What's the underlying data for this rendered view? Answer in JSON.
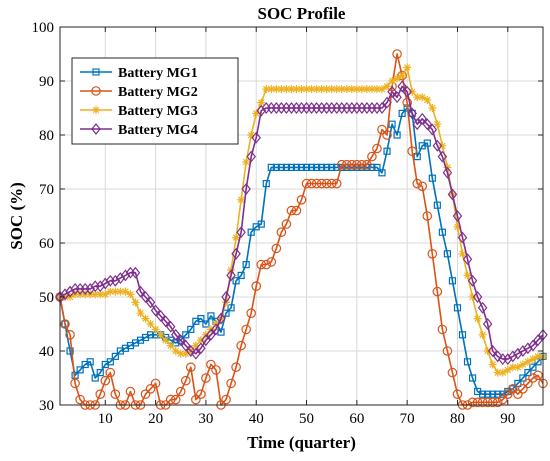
{
  "chart_data": {
    "type": "line",
    "title": "SOC Profile",
    "xlabel": "Time (quarter)",
    "ylabel": "SOC (%)",
    "xlim": [
      1,
      97
    ],
    "ylim": [
      30,
      100
    ],
    "xticks": [
      10,
      20,
      30,
      40,
      50,
      60,
      70,
      80,
      90
    ],
    "yticks": [
      30,
      40,
      50,
      60,
      70,
      80,
      90,
      100
    ],
    "grid": true,
    "legend_position": "top-left",
    "x_start": 1,
    "x_step": 1,
    "series": [
      {
        "name": "Battery MG1",
        "color": "#0072BD",
        "marker": "square",
        "values": [
          50.0,
          45.0,
          40.0,
          35.5,
          36.5,
          37.5,
          38.0,
          35.0,
          36.0,
          37.5,
          38.0,
          39.0,
          40.0,
          40.5,
          41.0,
          41.5,
          42.0,
          42.5,
          43.0,
          43.0,
          43.0,
          42.5,
          42.0,
          41.5,
          42.0,
          43.0,
          44.0,
          45.5,
          46.0,
          45.0,
          46.5,
          45.5,
          43.5,
          47.0,
          48.0,
          53.0,
          54.0,
          56.0,
          62.0,
          63.0,
          63.5,
          71.0,
          74.0,
          74.0,
          74.0,
          74.0,
          74.0,
          74.0,
          74.0,
          74.0,
          74.0,
          74.0,
          74.0,
          74.0,
          74.0,
          74.0,
          74.0,
          74.0,
          74.0,
          74.0,
          74.0,
          74.0,
          74.0,
          74.0,
          73.0,
          77.0,
          82.0,
          80.0,
          84.0,
          85.0,
          84.0,
          76.0,
          78.0,
          78.5,
          72.0,
          67.0,
          62.0,
          58.0,
          53.0,
          48.0,
          43.0,
          38.0,
          35.0,
          32.5,
          32.0,
          32.0,
          32.0,
          32.0,
          32.0,
          32.5,
          33.0,
          34.0,
          35.0,
          36.0,
          37.0,
          38.0,
          39.0
        ]
      },
      {
        "name": "Battery MG2",
        "color": "#D95319",
        "marker": "circle",
        "values": [
          50.0,
          45.0,
          43.0,
          34.0,
          31.0,
          30.0,
          30.0,
          30.0,
          32.0,
          34.5,
          36.0,
          32.0,
          30.0,
          30.0,
          32.5,
          30.0,
          30.0,
          32.0,
          33.0,
          34.0,
          30.0,
          30.0,
          31.0,
          31.0,
          32.5,
          34.5,
          37.0,
          31.0,
          32.0,
          35.0,
          37.5,
          36.5,
          30.0,
          31.0,
          34.0,
          37.0,
          41.0,
          44.0,
          47.0,
          52.0,
          56.0,
          56.0,
          56.5,
          59.0,
          62.0,
          63.5,
          66.0,
          66.0,
          68.0,
          71.0,
          71.0,
          71.0,
          71.0,
          71.0,
          71.0,
          71.0,
          74.5,
          74.5,
          74.5,
          74.5,
          74.5,
          74.5,
          76.0,
          77.5,
          81.0,
          80.0,
          89.0,
          95.0,
          91.0,
          86.0,
          77.0,
          71.0,
          70.5,
          65.0,
          58.0,
          51.0,
          44.0,
          40.0,
          36.0,
          32.0,
          30.0,
          30.0,
          30.5,
          30.5,
          30.5,
          30.5,
          30.5,
          30.5,
          31.0,
          32.0,
          33.0,
          32.0,
          33.0,
          34.0,
          35.0,
          35.5,
          34.0
        ]
      },
      {
        "name": "Battery MG3",
        "color": "#EDB120",
        "marker": "star",
        "values": [
          50.0,
          50.0,
          50.0,
          50.5,
          50.5,
          50.5,
          50.5,
          50.5,
          50.5,
          50.5,
          51.0,
          51.0,
          51.0,
          51.0,
          50.5,
          49.0,
          47.0,
          46.0,
          45.0,
          44.0,
          43.0,
          42.0,
          41.0,
          40.0,
          39.5,
          39.5,
          40.0,
          41.0,
          42.0,
          43.0,
          44.0,
          45.0,
          46.0,
          49.0,
          55.0,
          61.0,
          68.0,
          75.0,
          80.0,
          84.0,
          86.0,
          88.5,
          88.5,
          88.5,
          88.5,
          88.5,
          88.5,
          88.5,
          88.5,
          88.5,
          88.5,
          88.5,
          88.5,
          88.5,
          88.5,
          88.5,
          88.5,
          88.5,
          88.5,
          88.5,
          88.5,
          88.5,
          88.5,
          88.5,
          88.5,
          89.0,
          90.0,
          90.5,
          91.0,
          92.5,
          88.0,
          87.0,
          87.0,
          86.5,
          85.0,
          82.0,
          78.0,
          74.0,
          69.0,
          63.0,
          58.0,
          54.0,
          50.0,
          46.0,
          43.0,
          40.0,
          37.5,
          36.0,
          36.0,
          36.5,
          37.0,
          37.0,
          37.5,
          38.0,
          38.5,
          39.0,
          39.0
        ]
      },
      {
        "name": "Battery MG4",
        "color": "#7E2F8E",
        "marker": "diamond",
        "values": [
          50.0,
          50.5,
          51.0,
          51.5,
          51.5,
          51.5,
          51.5,
          52.0,
          52.0,
          52.5,
          53.0,
          53.0,
          53.5,
          54.0,
          54.5,
          54.5,
          51.0,
          50.0,
          49.0,
          47.5,
          46.5,
          45.5,
          44.5,
          43.0,
          42.0,
          41.0,
          40.0,
          39.5,
          40.5,
          42.0,
          43.0,
          44.0,
          46.0,
          50.0,
          54.0,
          58.0,
          62.0,
          70.0,
          76.0,
          79.5,
          84.5,
          85.0,
          85.0,
          85.0,
          85.0,
          85.0,
          85.0,
          85.0,
          85.0,
          85.0,
          85.0,
          85.0,
          85.0,
          85.0,
          85.0,
          85.0,
          85.0,
          85.0,
          85.0,
          85.0,
          85.0,
          85.0,
          85.0,
          85.0,
          85.0,
          86.0,
          88.0,
          87.0,
          89.0,
          88.0,
          84.0,
          82.0,
          83.0,
          82.0,
          81.0,
          78.0,
          76.0,
          73.0,
          69.0,
          65.0,
          61.0,
          57.0,
          53.0,
          50.0,
          48.0,
          45.0,
          40.0,
          39.0,
          38.5,
          38.5,
          39.0,
          39.5,
          40.0,
          40.5,
          41.0,
          42.0,
          43.0
        ]
      }
    ]
  }
}
